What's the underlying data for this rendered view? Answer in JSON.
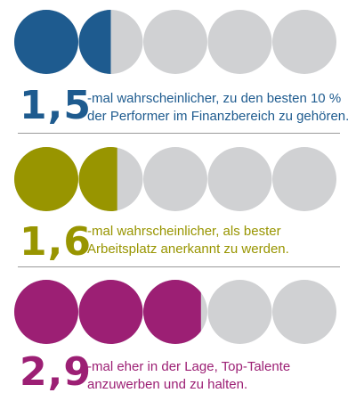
{
  "colors": {
    "background": "#ffffff",
    "empty_circle": "#d0d1d3",
    "divider": "#9a9a9a"
  },
  "rows": [
    {
      "value": 1.5,
      "circles_total": 5,
      "color": "#1e5b8f",
      "big_number": "1,5",
      "line1": "-mal wahrscheinlicher, zu den besten 10 %",
      "line2": "der Performer im Finanzbereich zu gehören."
    },
    {
      "value": 1.6,
      "circles_total": 5,
      "color": "#989500",
      "big_number": "1,6",
      "line1": "-mal wahrscheinlicher, als bester",
      "line2": "Arbeitsplatz anerkannt zu werden."
    },
    {
      "value": 2.9,
      "circles_total": 5,
      "color": "#9c1f74",
      "big_number": "2,9",
      "line1": "-mal eher in der Lage, Top-Talente",
      "line2": "anzuwerben und zu halten."
    }
  ]
}
